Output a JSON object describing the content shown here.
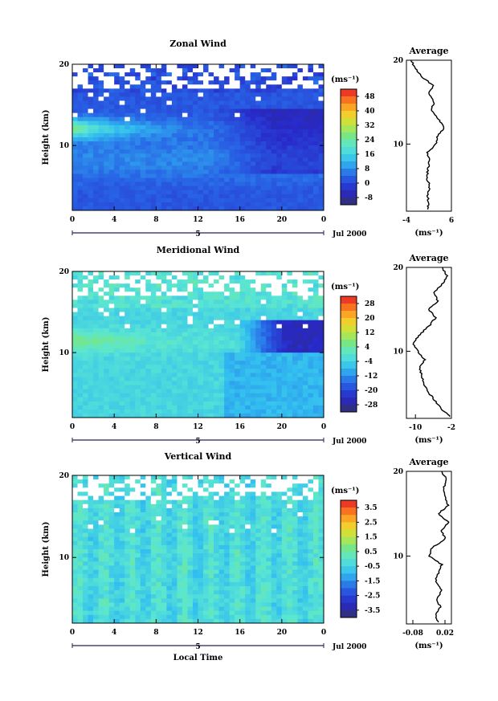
{
  "chart_data": [
    {
      "type": "heatmap",
      "title": "Zonal Wind",
      "ylabel": "Height (km)",
      "xlabel": "",
      "x_ticks": [
        "0",
        "4",
        "8",
        "12",
        "16",
        "20",
        "0"
      ],
      "y_ticks": [
        "10",
        "20"
      ],
      "xlim": [
        0,
        24
      ],
      "ylim": [
        2,
        20
      ],
      "date_label": "Jul 2000",
      "day_label": "5",
      "colorbar": {
        "unit": "(ms⁻¹)",
        "ticks": [
          "48",
          "40",
          "32",
          "24",
          "16",
          "8",
          "0",
          "-8"
        ],
        "range": [
          -12,
          52
        ]
      },
      "average": {
        "title": "Average",
        "xlim": [
          -4,
          6
        ],
        "x_ticks": [
          "-4",
          "6"
        ],
        "y_ticks": [
          "10",
          "20"
        ],
        "unit": "(ms⁻¹)",
        "profile": [
          [
            0.6,
            2.2
          ],
          [
            0.9,
            3
          ],
          [
            0.7,
            4
          ],
          [
            1.2,
            5
          ],
          [
            0.5,
            6
          ],
          [
            0.8,
            7
          ],
          [
            1.1,
            8
          ],
          [
            0.7,
            9
          ],
          [
            2.5,
            10
          ],
          [
            3.0,
            11
          ],
          [
            4.4,
            12
          ],
          [
            3.0,
            13
          ],
          [
            1.5,
            14
          ],
          [
            2.1,
            15
          ],
          [
            1.0,
            16
          ],
          [
            1.9,
            17
          ],
          [
            -0.5,
            18
          ],
          [
            -2.0,
            19
          ],
          [
            -3.0,
            20
          ]
        ]
      }
    },
    {
      "type": "heatmap",
      "title": "Meridional Wind",
      "ylabel": "Height (km)",
      "xlabel": "",
      "x_ticks": [
        "0",
        "4",
        "8",
        "12",
        "16",
        "20",
        "0"
      ],
      "y_ticks": [
        "10",
        "20"
      ],
      "xlim": [
        0,
        24
      ],
      "ylim": [
        2,
        20
      ],
      "date_label": "Jul 2000",
      "day_label": "5",
      "colorbar": {
        "unit": "(ms⁻¹)",
        "ticks": [
          "28",
          "20",
          "12",
          "4",
          "-4",
          "-12",
          "-20",
          "-28"
        ],
        "range": [
          -32,
          32
        ]
      },
      "average": {
        "title": "Average",
        "xlim": [
          -12,
          -2
        ],
        "x_ticks": [
          "-10",
          "-2"
        ],
        "y_ticks": [
          "10",
          "20"
        ],
        "unit": "(ms⁻¹)",
        "profile": [
          [
            -2.2,
            2.2
          ],
          [
            -4,
            3
          ],
          [
            -5.5,
            4
          ],
          [
            -7,
            5
          ],
          [
            -8,
            6
          ],
          [
            -8.6,
            7
          ],
          [
            -9,
            8
          ],
          [
            -8,
            9
          ],
          [
            -9.5,
            10
          ],
          [
            -10.5,
            11
          ],
          [
            -9,
            12
          ],
          [
            -7,
            13
          ],
          [
            -5.5,
            14
          ],
          [
            -7,
            15
          ],
          [
            -5,
            16
          ],
          [
            -6,
            17
          ],
          [
            -4,
            18
          ],
          [
            -3,
            19
          ],
          [
            -4,
            20
          ]
        ]
      }
    },
    {
      "type": "heatmap",
      "title": "Vertical Wind",
      "ylabel": "Height (km)",
      "xlabel": "Local Time",
      "x_ticks": [
        "0",
        "4",
        "8",
        "12",
        "16",
        "20",
        "0"
      ],
      "y_ticks": [
        "10",
        "20"
      ],
      "xlim": [
        0,
        24
      ],
      "ylim": [
        2,
        20
      ],
      "date_label": "Jul 2000",
      "day_label": "5",
      "colorbar": {
        "unit": "(ms⁻¹)",
        "ticks": [
          "3.5",
          "2.5",
          "1.5",
          "0.5",
          "-0.5",
          "-1.5",
          "-2.5",
          "-3.5"
        ],
        "range": [
          -4,
          4
        ]
      },
      "average": {
        "title": "Average",
        "xlim": [
          -0.1,
          0.04
        ],
        "x_ticks": [
          "-0.08",
          "0.02"
        ],
        "y_ticks": [
          "10",
          "20"
        ],
        "unit": "(ms⁻¹)",
        "profile": [
          [
            0.0,
            2.2
          ],
          [
            -0.01,
            3
          ],
          [
            0.005,
            4
          ],
          [
            -0.005,
            5
          ],
          [
            0.01,
            6
          ],
          [
            -0.01,
            7
          ],
          [
            0.0,
            8
          ],
          [
            0.01,
            9
          ],
          [
            -0.03,
            10
          ],
          [
            -0.02,
            11
          ],
          [
            0.02,
            12
          ],
          [
            0.01,
            13
          ],
          [
            0.03,
            14
          ],
          [
            0.0,
            15
          ],
          [
            0.03,
            16
          ],
          [
            0.02,
            17
          ],
          [
            0.015,
            18
          ],
          [
            0.025,
            19
          ],
          [
            0.01,
            20
          ]
        ]
      }
    }
  ]
}
